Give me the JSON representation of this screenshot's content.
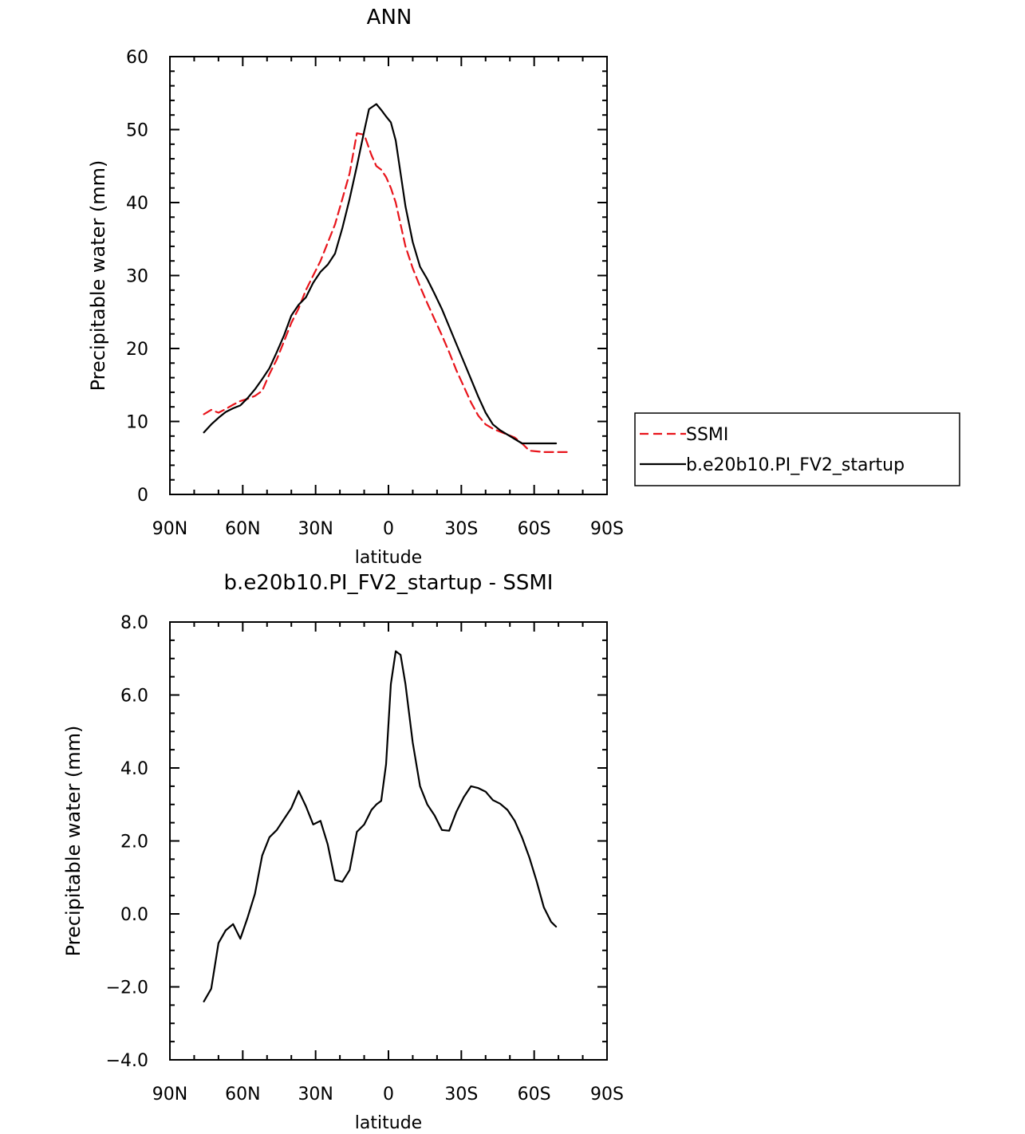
{
  "chart_data": [
    {
      "type": "line",
      "title": "ANN",
      "xlabel": "latitude",
      "ylabel": "Precipitable water (mm)",
      "xlim": [
        90,
        -90
      ],
      "ylim": [
        0,
        60
      ],
      "x_ticks": [
        {
          "value": 90,
          "label": "90N"
        },
        {
          "value": 60,
          "label": "60N"
        },
        {
          "value": 30,
          "label": "30N"
        },
        {
          "value": 0,
          "label": "0"
        },
        {
          "value": -30,
          "label": "30S"
        },
        {
          "value": -60,
          "label": "60S"
        },
        {
          "value": -90,
          "label": "90S"
        }
      ],
      "y_ticks": [
        {
          "value": 0,
          "label": "0"
        },
        {
          "value": 10,
          "label": "10"
        },
        {
          "value": 20,
          "label": "20"
        },
        {
          "value": 30,
          "label": "30"
        },
        {
          "value": 40,
          "label": "40"
        },
        {
          "value": 50,
          "label": "50"
        },
        {
          "value": 60,
          "label": "60"
        }
      ],
      "legend": {
        "placement": "right"
      },
      "series": [
        {
          "name": "SSMI",
          "color": "#e8141b",
          "dash": "dashed",
          "x": [
            76,
            73,
            70,
            67,
            64,
            61,
            58,
            55,
            52,
            49,
            46,
            43,
            40,
            37,
            34,
            31,
            28,
            25,
            22,
            19,
            16,
            13,
            10,
            7,
            5,
            3,
            1,
            -1,
            -3,
            -5,
            -7,
            -10,
            -13,
            -16,
            -19,
            -22,
            -25,
            -28,
            -31,
            -34,
            -37,
            -40,
            -43,
            -46,
            -49,
            -52,
            -55,
            -58,
            -61,
            -64,
            -67,
            -70,
            -73,
            -74
          ],
          "y": [
            11.0,
            11.6,
            11.2,
            11.7,
            12.3,
            12.8,
            13.1,
            13.5,
            14.2,
            16.5,
            18.5,
            21.0,
            23.5,
            25.5,
            28.0,
            30.0,
            32.0,
            34.5,
            37.0,
            40.5,
            44.0,
            49.5,
            49.3,
            46.5,
            45.0,
            44.5,
            43.5,
            42.0,
            40.0,
            37.0,
            34.0,
            31.0,
            28.5,
            26.2,
            24.0,
            21.8,
            19.5,
            17.0,
            14.8,
            12.6,
            10.8,
            9.6,
            9.0,
            8.6,
            8.2,
            7.8,
            7.0,
            6.0,
            5.9,
            5.8,
            5.8,
            5.8,
            5.8,
            5.8
          ]
        },
        {
          "name": "b.e20b10.PI_FV2_startup",
          "color": "#000000",
          "dash": "solid",
          "x": [
            76,
            73,
            70,
            67,
            64,
            61,
            58,
            55,
            52,
            49,
            46,
            43,
            40,
            37,
            34,
            31,
            28,
            25,
            22,
            19,
            16,
            13,
            10,
            8,
            5,
            3,
            1,
            -1,
            -3,
            -5,
            -7,
            -10,
            -13,
            -16,
            -19,
            -22,
            -25,
            -28,
            -31,
            -34,
            -37,
            -40,
            -43,
            -46,
            -49,
            -52,
            -55,
            -58,
            -61,
            -64,
            -67,
            -69
          ],
          "y": [
            8.5,
            9.6,
            10.5,
            11.3,
            11.8,
            12.2,
            13.2,
            14.4,
            15.8,
            17.3,
            19.5,
            21.8,
            24.5,
            26.0,
            27.0,
            29.0,
            30.5,
            31.5,
            33.0,
            36.5,
            40.5,
            45.0,
            49.8,
            52.8,
            53.5,
            52.7,
            51.8,
            51.0,
            48.5,
            44.0,
            39.5,
            34.6,
            31.2,
            29.5,
            27.5,
            25.4,
            23.0,
            20.6,
            18.2,
            15.8,
            13.4,
            11.2,
            9.6,
            8.8,
            8.2,
            7.6,
            7.0,
            7.0,
            7.0,
            7.0,
            7.0,
            7.0
          ]
        }
      ]
    },
    {
      "type": "line",
      "title": "b.e20b10.PI_FV2_startup - SSMI",
      "xlabel": "latitude",
      "ylabel": "Precipitable water (mm)",
      "xlim": [
        90,
        -90
      ],
      "ylim": [
        -4,
        8
      ],
      "x_ticks": [
        {
          "value": 90,
          "label": "90N"
        },
        {
          "value": 60,
          "label": "60N"
        },
        {
          "value": 30,
          "label": "30N"
        },
        {
          "value": 0,
          "label": "0"
        },
        {
          "value": -30,
          "label": "30S"
        },
        {
          "value": -60,
          "label": "60S"
        },
        {
          "value": -90,
          "label": "90S"
        }
      ],
      "y_ticks": [
        {
          "value": -4,
          "label": "−4.0"
        },
        {
          "value": -2,
          "label": "−2.0"
        },
        {
          "value": 0,
          "label": "0.0"
        },
        {
          "value": 2,
          "label": "2.0"
        },
        {
          "value": 4,
          "label": "4.0"
        },
        {
          "value": 6,
          "label": "6.0"
        },
        {
          "value": 8,
          "label": "8.0"
        }
      ],
      "series": [
        {
          "color": "#000000",
          "dash": "solid",
          "x": [
            76,
            73,
            70,
            67,
            64,
            61,
            58,
            55,
            52,
            49,
            46,
            43,
            40,
            37,
            34,
            31,
            28,
            25,
            22,
            19,
            16,
            13,
            10,
            7,
            5,
            3,
            1,
            -1,
            -3,
            -5,
            -7,
            -10,
            -13,
            -16,
            -19,
            -22,
            -25,
            -28,
            -31,
            -34,
            -37,
            -40,
            -43,
            -46,
            -49,
            -52,
            -55,
            -58,
            -61,
            -64,
            -67,
            -69
          ],
          "y": [
            -2.4,
            -2.05,
            -0.8,
            -0.45,
            -0.28,
            -0.68,
            -0.1,
            0.55,
            1.6,
            2.1,
            2.3,
            2.6,
            2.9,
            3.37,
            2.95,
            2.45,
            2.55,
            1.9,
            0.93,
            0.88,
            1.2,
            2.25,
            2.45,
            2.85,
            3.0,
            3.1,
            4.1,
            6.3,
            7.2,
            7.1,
            6.3,
            4.7,
            3.5,
            3.0,
            2.7,
            2.3,
            2.28,
            2.8,
            3.2,
            3.5,
            3.45,
            3.35,
            3.12,
            3.02,
            2.85,
            2.55,
            2.1,
            1.55,
            0.9,
            0.18,
            -0.22,
            -0.35
          ]
        }
      ]
    }
  ]
}
